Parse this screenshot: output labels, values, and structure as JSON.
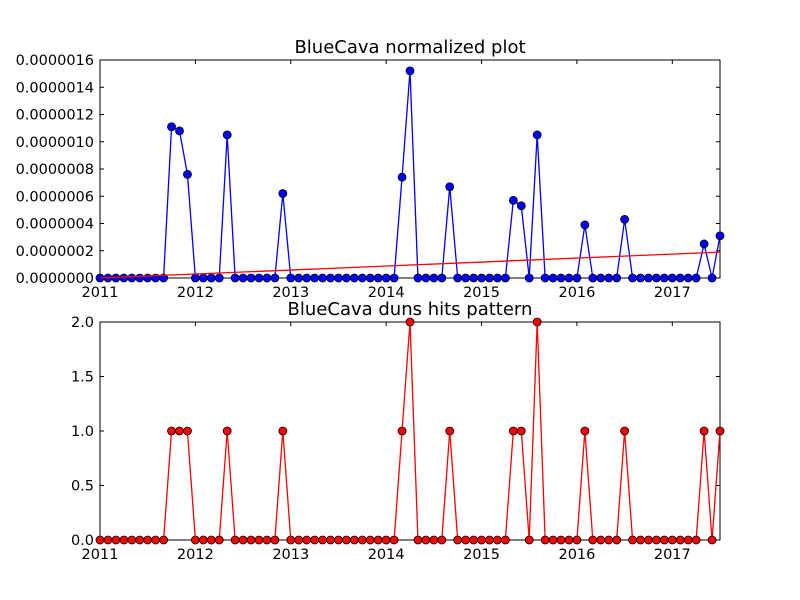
{
  "chart_data": [
    {
      "type": "line",
      "title": "BlueCava normalized plot",
      "xlabel": "",
      "ylabel": "",
      "x_tick_labels": [
        "2011",
        "2012",
        "2013",
        "2014",
        "2015",
        "2016",
        "2017"
      ],
      "y_tick_labels": [
        "0.0000000",
        "0.0000002",
        "0.0000004",
        "0.0000006",
        "0.0000008",
        "0.0000010",
        "0.0000012",
        "0.0000014",
        "0.0000016"
      ],
      "xlim": [
        "2011-01",
        "2017-07"
      ],
      "ylim": [
        0,
        1.6e-06
      ],
      "grid": false,
      "legend": false,
      "series": [
        {
          "color": "#0000ff",
          "marker": "circle",
          "x": [
            "2011-01",
            "2011-02",
            "2011-03",
            "2011-04",
            "2011-05",
            "2011-06",
            "2011-07",
            "2011-08",
            "2011-09",
            "2011-10",
            "2011-11",
            "2011-12",
            "2012-01",
            "2012-02",
            "2012-03",
            "2012-04",
            "2012-05",
            "2012-06",
            "2012-07",
            "2012-08",
            "2012-09",
            "2012-10",
            "2012-11",
            "2012-12",
            "2013-01",
            "2013-02",
            "2013-03",
            "2013-04",
            "2013-05",
            "2013-06",
            "2013-07",
            "2013-08",
            "2013-09",
            "2013-10",
            "2013-11",
            "2013-12",
            "2014-01",
            "2014-02",
            "2014-03",
            "2014-04",
            "2014-05",
            "2014-06",
            "2014-07",
            "2014-08",
            "2014-09",
            "2014-10",
            "2014-11",
            "2014-12",
            "2015-01",
            "2015-02",
            "2015-03",
            "2015-04",
            "2015-05",
            "2015-06",
            "2015-07",
            "2015-08",
            "2015-09",
            "2015-10",
            "2015-11",
            "2015-12",
            "2016-01",
            "2016-02",
            "2016-03",
            "2016-04",
            "2016-05",
            "2016-06",
            "2016-07",
            "2016-08",
            "2016-09",
            "2016-10",
            "2016-11",
            "2016-12",
            "2017-01",
            "2017-02",
            "2017-03",
            "2017-04",
            "2017-05",
            "2017-06",
            "2017-07"
          ],
          "y": [
            0,
            0,
            0,
            0,
            0,
            0,
            0,
            0,
            0,
            1.11e-06,
            1.08e-06,
            7.6e-07,
            0,
            0,
            0,
            0,
            1.05e-06,
            0,
            0,
            0,
            0,
            0,
            0,
            6.2e-07,
            0,
            0,
            0,
            0,
            0,
            0,
            0,
            0,
            0,
            0,
            0,
            0,
            0,
            0,
            7.4e-07,
            1.52e-06,
            0,
            0,
            0,
            0,
            6.7e-07,
            0,
            0,
            0,
            0,
            0,
            0,
            0,
            5.7e-07,
            5.3e-07,
            0,
            1.05e-06,
            0,
            0,
            0,
            0,
            0,
            3.9e-07,
            0,
            0,
            0,
            0,
            4.3e-07,
            0,
            0,
            0,
            0,
            0,
            0,
            0,
            0,
            0,
            2.5e-07,
            0,
            3.1e-07
          ]
        },
        {
          "color": "#ff0000",
          "marker": "none",
          "x": [
            "2011-01",
            "2017-07"
          ],
          "y": [
            0,
            1.9e-07
          ]
        }
      ]
    },
    {
      "type": "line",
      "title": "BlueCava duns hits pattern",
      "xlabel": "",
      "ylabel": "",
      "x_tick_labels": [
        "2011",
        "2012",
        "2013",
        "2014",
        "2015",
        "2016",
        "2017"
      ],
      "y_tick_labels": [
        "0.0",
        "0.5",
        "1.0",
        "1.5",
        "2.0"
      ],
      "xlim": [
        "2011-01",
        "2017-07"
      ],
      "ylim": [
        0,
        2
      ],
      "grid": false,
      "legend": false,
      "series": [
        {
          "color": "#ff0000",
          "marker": "circle",
          "x": [
            "2011-01",
            "2011-02",
            "2011-03",
            "2011-04",
            "2011-05",
            "2011-06",
            "2011-07",
            "2011-08",
            "2011-09",
            "2011-10",
            "2011-11",
            "2011-12",
            "2012-01",
            "2012-02",
            "2012-03",
            "2012-04",
            "2012-05",
            "2012-06",
            "2012-07",
            "2012-08",
            "2012-09",
            "2012-10",
            "2012-11",
            "2012-12",
            "2013-01",
            "2013-02",
            "2013-03",
            "2013-04",
            "2013-05",
            "2013-06",
            "2013-07",
            "2013-08",
            "2013-09",
            "2013-10",
            "2013-11",
            "2013-12",
            "2014-01",
            "2014-02",
            "2014-03",
            "2014-04",
            "2014-05",
            "2014-06",
            "2014-07",
            "2014-08",
            "2014-09",
            "2014-10",
            "2014-11",
            "2014-12",
            "2015-01",
            "2015-02",
            "2015-03",
            "2015-04",
            "2015-05",
            "2015-06",
            "2015-07",
            "2015-08",
            "2015-09",
            "2015-10",
            "2015-11",
            "2015-12",
            "2016-01",
            "2016-02",
            "2016-03",
            "2016-04",
            "2016-05",
            "2016-06",
            "2016-07",
            "2016-08",
            "2016-09",
            "2016-10",
            "2016-11",
            "2016-12",
            "2017-01",
            "2017-02",
            "2017-03",
            "2017-04",
            "2017-05",
            "2017-06",
            "2017-07"
          ],
          "y": [
            0,
            0,
            0,
            0,
            0,
            0,
            0,
            0,
            0,
            1,
            1,
            1,
            0,
            0,
            0,
            0,
            1,
            0,
            0,
            0,
            0,
            0,
            0,
            1,
            0,
            0,
            0,
            0,
            0,
            0,
            0,
            0,
            0,
            0,
            0,
            0,
            0,
            0,
            1,
            2,
            0,
            0,
            0,
            0,
            1,
            0,
            0,
            0,
            0,
            0,
            0,
            0,
            1,
            1,
            0,
            2,
            0,
            0,
            0,
            0,
            0,
            1,
            0,
            0,
            0,
            0,
            1,
            0,
            0,
            0,
            0,
            0,
            0,
            0,
            0,
            0,
            1,
            0,
            1
          ]
        }
      ]
    }
  ]
}
